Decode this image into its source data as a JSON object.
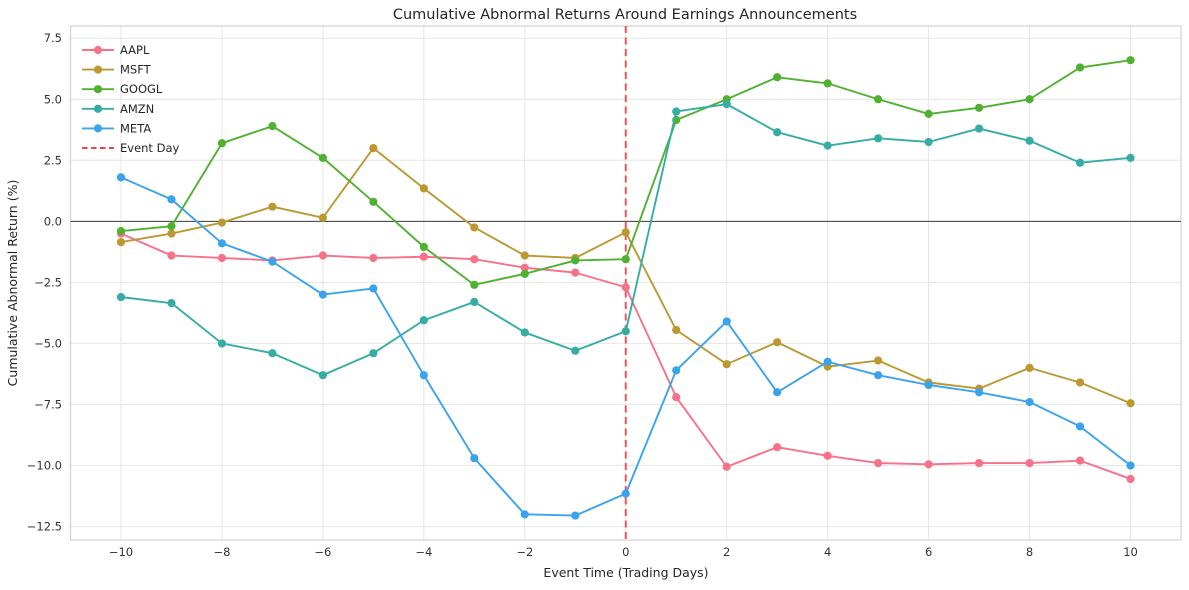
{
  "title": "Cumulative Abnormal Returns Around Earnings Announcements",
  "chart_data": {
    "type": "line",
    "title": "Cumulative Abnormal Returns Around Earnings Announcements",
    "xlabel": "Event Time (Trading Days)",
    "ylabel": "Cumulative Abnormal Return (%)",
    "x": [
      -10,
      -9,
      -8,
      -7,
      -6,
      -5,
      -4,
      -3,
      -2,
      -1,
      0,
      1,
      2,
      3,
      4,
      5,
      6,
      7,
      8,
      9,
      10
    ],
    "series": [
      {
        "name": "AAPL",
        "color": "#f77189",
        "values": [
          -0.5,
          -1.4,
          -1.5,
          -1.6,
          -1.4,
          -1.5,
          -1.45,
          -1.55,
          -1.9,
          -2.1,
          -2.7,
          -7.2,
          -10.05,
          -9.25,
          -9.6,
          -9.9,
          -9.95,
          -9.9,
          -9.9,
          -9.8,
          -10.55
        ]
      },
      {
        "name": "MSFT",
        "color": "#bb9832",
        "values": [
          -0.85,
          -0.5,
          -0.05,
          0.6,
          0.15,
          3.0,
          1.35,
          -0.25,
          -1.4,
          -1.5,
          -0.45,
          -4.45,
          -5.85,
          -4.95,
          -5.95,
          -5.7,
          -6.6,
          -6.85,
          -6.0,
          -6.6,
          -7.45
        ]
      },
      {
        "name": "GOOGL",
        "color": "#50b131",
        "values": [
          -0.4,
          -0.2,
          3.2,
          3.9,
          2.6,
          0.8,
          -1.05,
          -2.6,
          -2.15,
          -1.6,
          -1.55,
          4.15,
          5.0,
          5.9,
          5.65,
          5.0,
          4.4,
          4.65,
          5.0,
          6.3,
          6.6
        ]
      },
      {
        "name": "AMZN",
        "color": "#36ada4",
        "values": [
          -3.1,
          -3.35,
          -5.0,
          -5.4,
          -6.3,
          -5.4,
          -4.05,
          -3.3,
          -4.55,
          -5.3,
          -4.5,
          4.5,
          4.8,
          3.65,
          3.1,
          3.4,
          3.25,
          3.8,
          3.3,
          2.4,
          2.6
        ]
      },
      {
        "name": "META",
        "color": "#3ba3ec",
        "values": [
          1.8,
          0.9,
          -0.9,
          -1.65,
          -3.0,
          -2.75,
          -6.3,
          -9.7,
          -12.0,
          -12.05,
          -11.15,
          -6.1,
          -4.1,
          -7.0,
          -5.75,
          -6.3,
          -6.7,
          -7.0,
          -7.4,
          -8.4,
          -10.0
        ]
      }
    ],
    "event_line": {
      "label": "Event Day",
      "x": 0,
      "color": "#ee4444",
      "style": "dashed"
    },
    "zero_line": {
      "y": 0,
      "color": "#3c3c3c"
    },
    "xlim": [
      -11,
      11
    ],
    "ylim": [
      -13.05,
      8.0
    ],
    "xticks": [
      -10,
      -8,
      -6,
      -4,
      -2,
      0,
      2,
      4,
      6,
      8,
      10
    ],
    "yticks": [
      7.5,
      5.0,
      2.5,
      0.0,
      -2.5,
      -5.0,
      -7.5,
      -10.0,
      -12.5
    ],
    "grid": true,
    "grid_color": "#e6e6e6",
    "spine_color": "#d2d2d2",
    "legend_position": "upper left"
  }
}
